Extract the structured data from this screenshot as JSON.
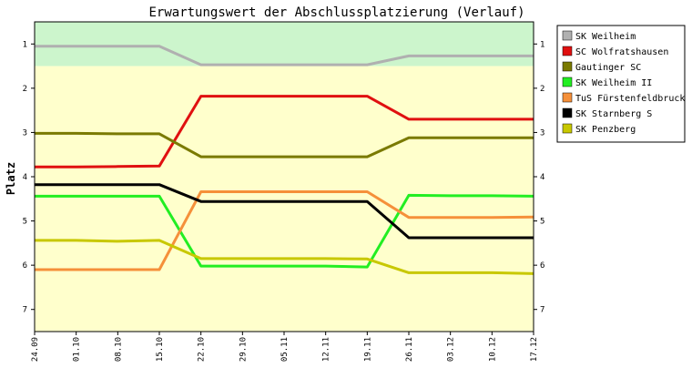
{
  "chart_data": {
    "type": "line",
    "title": "Erwartungswert der Abschlussplatzierung (Verlauf)",
    "xlabel": "",
    "ylabel": "Platz",
    "ylim": [
      0.5,
      7.5
    ],
    "yticks": [
      1,
      2,
      3,
      4,
      5,
      6,
      7
    ],
    "categories": [
      "24.09",
      "01.10",
      "08.10",
      "15.10",
      "22.10",
      "29.10",
      "05.11",
      "12.11",
      "19.11",
      "26.11",
      "03.12",
      "10.12",
      "17.12"
    ],
    "bands": [
      {
        "from": 0.5,
        "to": 1.5,
        "color": "#ccf5cc"
      },
      {
        "from": 1.5,
        "to": 7.5,
        "color": "#ffffcc"
      }
    ],
    "grid": false,
    "legend_position": "right",
    "series": [
      {
        "name": "SK Weilheim",
        "color": "#b0b0b0",
        "values": [
          1.05,
          1.05,
          1.05,
          1.05,
          1.47,
          1.47,
          1.47,
          1.47,
          1.47,
          1.27,
          1.27,
          1.27,
          1.27
        ]
      },
      {
        "name": "SC Wolfratshausen",
        "color": "#e01010",
        "values": [
          3.78,
          3.78,
          3.77,
          3.76,
          2.18,
          2.18,
          2.18,
          2.18,
          2.18,
          2.7,
          2.7,
          2.7,
          2.7
        ]
      },
      {
        "name": "Gautinger SC",
        "color": "#7a7a00",
        "values": [
          3.02,
          3.02,
          3.03,
          3.03,
          3.55,
          3.55,
          3.55,
          3.55,
          3.55,
          3.12,
          3.12,
          3.12,
          3.12
        ]
      },
      {
        "name": "SK Weilheim II",
        "color": "#22ee22",
        "values": [
          4.44,
          4.44,
          4.44,
          4.44,
          6.02,
          6.02,
          6.02,
          6.02,
          6.04,
          4.42,
          4.43,
          4.43,
          4.44
        ]
      },
      {
        "name": "TuS Fürstenfeldbruck",
        "color": "#f5903a",
        "values": [
          6.1,
          6.1,
          6.1,
          6.1,
          4.34,
          4.34,
          4.34,
          4.34,
          4.34,
          4.92,
          4.92,
          4.92,
          4.91
        ]
      },
      {
        "name": "SK Starnberg S",
        "color": "#000000",
        "values": [
          4.18,
          4.18,
          4.18,
          4.18,
          4.56,
          4.56,
          4.56,
          4.56,
          4.56,
          5.38,
          5.38,
          5.38,
          5.38
        ]
      },
      {
        "name": "SK Penzberg",
        "color": "#c8c800",
        "values": [
          5.44,
          5.44,
          5.46,
          5.44,
          5.85,
          5.85,
          5.85,
          5.85,
          5.86,
          6.17,
          6.17,
          6.17,
          6.19
        ]
      }
    ]
  }
}
